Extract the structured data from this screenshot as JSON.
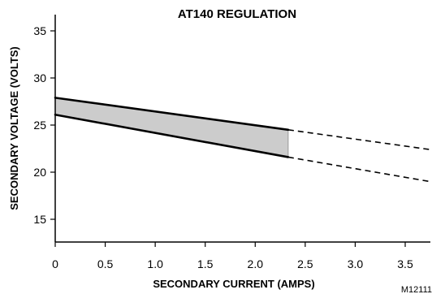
{
  "chart_data": {
    "type": "area",
    "title": "AT140 REGULATION",
    "xlabel": "SECONDARY CURRENT (AMPS)",
    "ylabel": "SECONDARY VOLTAGE (VOLTS)",
    "figure_id": "M12111",
    "xlim": [
      0,
      3.75
    ],
    "ylim": [
      12.5,
      37
    ],
    "x_ticks": [
      "0",
      "0.5",
      "1.0",
      "1.5",
      "2.0",
      "2.5",
      "3.0",
      "3.5"
    ],
    "x_tick_values": [
      0,
      0.5,
      1.0,
      1.5,
      2.0,
      2.5,
      3.0,
      3.5
    ],
    "y_ticks": [
      "15",
      "20",
      "25",
      "30",
      "35"
    ],
    "y_tick_values": [
      15,
      20,
      25,
      30,
      35
    ],
    "grid": false,
    "series": [
      {
        "band": "upper",
        "solid": {
          "x": [
            0,
            2.33
          ],
          "y": [
            27.9,
            24.5
          ]
        },
        "dashed": {
          "x": [
            2.33,
            3.75
          ],
          "y": [
            24.5,
            22.4
          ]
        }
      },
      {
        "band": "lower",
        "solid": {
          "x": [
            0,
            2.33
          ],
          "y": [
            26.1,
            21.6
          ]
        },
        "dashed": {
          "x": [
            2.33,
            3.75
          ],
          "y": [
            21.6,
            19.0
          ]
        }
      }
    ],
    "fill_color": "#cccccc",
    "line_color": "#000000"
  }
}
